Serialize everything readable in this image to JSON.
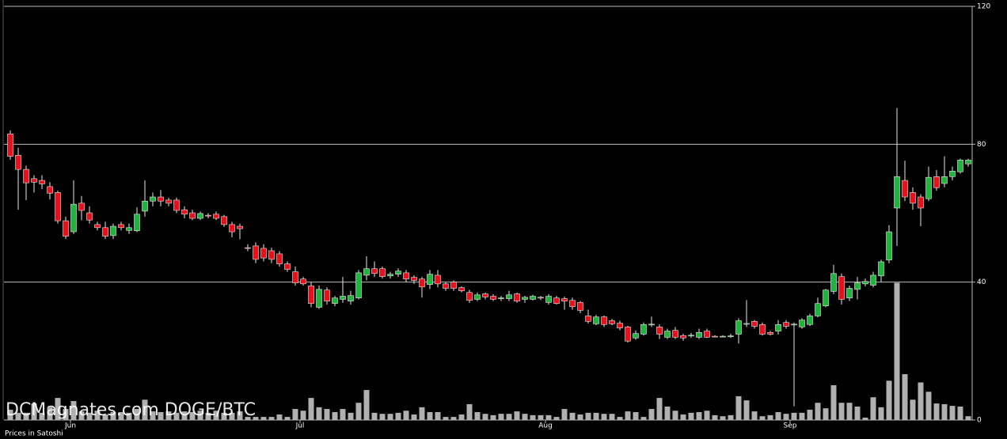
{
  "chart_data": {
    "type": "candlestick",
    "title": "DCMagnates.com DOGE/BTC",
    "ylabel": "Prices in Satoshi",
    "up_color": "#22b33c",
    "down_color": "#e3121b",
    "volume_color": "#b0b0b0",
    "grid": true,
    "ylim": [
      0,
      120
    ],
    "yticks": [
      0,
      40,
      80,
      120
    ],
    "xticks": [
      {
        "value": 7.6,
        "label": "Jun"
      },
      {
        "value": 36.6,
        "label": "Jul"
      },
      {
        "value": 67.6,
        "label": "Aug"
      },
      {
        "value": 98.5,
        "label": "Sep"
      }
    ],
    "open": [
      83,
      76.8,
      72.7,
      70,
      69.5,
      67.7,
      66,
      57.8,
      54.6,
      62.9,
      60.1,
      56.7,
      55.8,
      53.5,
      56.7,
      55,
      54.9,
      60.6,
      63.5,
      64.7,
      63.8,
      63.8,
      61,
      60.1,
      58.5,
      59.4,
      59.7,
      59,
      56.7,
      56.2,
      50,
      50.5,
      49.8,
      49.1,
      48.2,
      45.3,
      43,
      40.9,
      38.9,
      32.7,
      37.7,
      33.8,
      35,
      34.5,
      35.4,
      42,
      43.9,
      43.9,
      41.8,
      42.3,
      42.7,
      41.4,
      40.9,
      39.3,
      42,
      39.5,
      40,
      38.4,
      37,
      35,
      36.6,
      35.9,
      35.2,
      35.2,
      36.6,
      35,
      35,
      35.6,
      34.1,
      35.4,
      35.2,
      34.7,
      34.1,
      30.2,
      27.9,
      29.9,
      28.8,
      28.1,
      27,
      23.8,
      24.9,
      27.6,
      27,
      24,
      26,
      24.5,
      24.4,
      24,
      25.8,
      24.3,
      24.2,
      24.3,
      24.9,
      27.9,
      28.6,
      27.7,
      25.4,
      25.8,
      28.3,
      27.6,
      27,
      27.7,
      30.2,
      33.1,
      37.3,
      41.6,
      35.4,
      37.9,
      39.5,
      39.1,
      41.8,
      46.4,
      61.5,
      69.5,
      66,
      64.7,
      64.2,
      70.6,
      68.6,
      70.6,
      72,
      74.3
    ],
    "high": [
      84,
      79,
      73.8,
      71,
      71,
      69,
      66.5,
      59,
      69.5,
      65,
      62,
      57.5,
      57.5,
      57,
      57.5,
      57,
      61.7,
      69.5,
      66,
      66.7,
      64.5,
      64.5,
      62,
      61,
      60.5,
      60,
      60.5,
      59.5,
      57.5,
      57,
      51,
      51.5,
      51,
      50,
      49,
      46,
      44.5,
      41.5,
      40,
      39,
      38.5,
      36,
      41.5,
      37.5,
      43.5,
      47.5,
      46,
      44.5,
      43,
      44,
      43.5,
      42,
      41.5,
      43.5,
      43.5,
      40,
      40.5,
      38.8,
      37.8,
      37,
      37,
      36.5,
      36,
      37.5,
      37,
      36,
      36.3,
      36,
      36.5,
      36,
      35.8,
      35.5,
      34.5,
      32,
      30.5,
      30.3,
      29.3,
      28.8,
      27.3,
      26,
      28.3,
      30,
      27.8,
      26.5,
      27,
      25,
      25.3,
      26.5,
      26.5,
      24.6,
      24.6,
      25,
      29.5,
      34.8,
      29,
      28.3,
      25.8,
      29,
      29,
      28.3,
      29.5,
      30.8,
      35.5,
      38,
      45,
      42.5,
      39,
      41.5,
      41,
      43,
      46.5,
      56.5,
      90.5,
      75.2,
      67.5,
      65.5,
      73.5,
      72.5,
      76.5,
      73.5,
      75.8,
      75.8
    ],
    "low": [
      75.5,
      61,
      63.8,
      66,
      67,
      64,
      57,
      52.5,
      54,
      58,
      57,
      55,
      52.5,
      52.5,
      55,
      54,
      54.5,
      59,
      62,
      62,
      62,
      60,
      58.5,
      58,
      58,
      58.5,
      58,
      56,
      53,
      52.5,
      49,
      45.5,
      46,
      45.5,
      44.5,
      43,
      39,
      39,
      32.7,
      32.2,
      33.5,
      33,
      34,
      33.5,
      35,
      40.5,
      41.5,
      41,
      41,
      41.5,
      40,
      39.5,
      35.5,
      38,
      38.5,
      37.5,
      37.5,
      37,
      34,
      34.5,
      35,
      34.5,
      34.5,
      34.5,
      34,
      34,
      34.7,
      34.8,
      33.5,
      33.5,
      32,
      32,
      31,
      28,
      27.5,
      27,
      27.5,
      26,
      22.5,
      23.3,
      24.5,
      27,
      23.5,
      23.5,
      23.5,
      23,
      23.8,
      23.5,
      23.8,
      24,
      24,
      23.8,
      22.2,
      27,
      26.5,
      24.5,
      24.5,
      24.8,
      26.5,
      4,
      26.5,
      27.3,
      29.8,
      32.7,
      36.5,
      33.5,
      34.5,
      35,
      38.8,
      38.5,
      40,
      45.5,
      50.5,
      63.5,
      61,
      56.2,
      63.5,
      66.5,
      67.5,
      69.5,
      71.5,
      73.5
    ],
    "close": [
      76.5,
      72.7,
      68.8,
      69,
      68.5,
      65.8,
      57.8,
      53.3,
      62.6,
      60.8,
      58,
      55.8,
      53.3,
      56.2,
      55.8,
      55.8,
      59.7,
      63.5,
      64.7,
      63.5,
      62.9,
      60.8,
      59.7,
      58.5,
      59.9,
      59.2,
      58.5,
      56.7,
      54.6,
      55.5,
      49.8,
      46.6,
      47,
      46.6,
      45.3,
      43.7,
      39.8,
      39.5,
      33.8,
      37.9,
      34.5,
      35.4,
      35.9,
      36.1,
      42.7,
      43.9,
      42.5,
      41.6,
      42.3,
      43.2,
      40.9,
      40.5,
      38.6,
      42.3,
      39.5,
      38.2,
      38.2,
      37.5,
      34.7,
      36.3,
      35.7,
      35,
      35.4,
      36.3,
      34.5,
      35.6,
      35.9,
      35.4,
      35.9,
      33.8,
      34.5,
      32.9,
      31.8,
      28.6,
      29.9,
      27.7,
      27.9,
      26.7,
      22.9,
      25.1,
      27.7,
      27.8,
      24.9,
      25.8,
      24,
      23.8,
      24.6,
      25.4,
      24,
      24.2,
      24.3,
      24.4,
      28.8,
      28,
      27.2,
      24.9,
      24.9,
      27.7,
      27.2,
      27.8,
      29,
      30.2,
      33.8,
      37.7,
      42.5,
      35,
      38.2,
      39.8,
      40.2,
      42,
      45.9,
      54.6,
      70.6,
      64.7,
      62.9,
      61.5,
      70.4,
      67.4,
      70.6,
      72.2,
      75.4,
      75.4
    ],
    "volume": [
      3.0,
      2.1,
      2.1,
      4.8,
      2.1,
      3.7,
      6.4,
      3.2,
      5.5,
      2.5,
      2.1,
      2.7,
      1.6,
      2.3,
      2.3,
      2.1,
      3.2,
      5.9,
      2.5,
      2.3,
      2.5,
      2.1,
      2.5,
      2.3,
      2.7,
      2.1,
      2.7,
      2.1,
      2.1,
      2.5,
      0.9,
      0.9,
      0.9,
      0.9,
      1.6,
      0.9,
      3.2,
      2.7,
      6.4,
      3.7,
      3.2,
      2.3,
      3.2,
      2.1,
      5.0,
      8.7,
      2.1,
      1.8,
      1.8,
      2.1,
      2.7,
      1.6,
      3.7,
      2.3,
      2.3,
      0.9,
      0.9,
      1.6,
      4.6,
      2.3,
      1.8,
      1.4,
      1.8,
      1.8,
      2.5,
      1.8,
      1.4,
      1.4,
      1.4,
      0.9,
      3.2,
      2.1,
      1.6,
      2.1,
      2.1,
      1.8,
      1.8,
      0.9,
      2.5,
      2.3,
      0.9,
      3.2,
      6.4,
      3.9,
      2.7,
      1.6,
      2.1,
      2.3,
      2.7,
      1.4,
      1.1,
      1.4,
      6.9,
      5.7,
      2.5,
      1.1,
      1.4,
      2.3,
      1.8,
      2.1,
      2.1,
      3.0,
      5.0,
      3.4,
      10.1,
      5.0,
      5.0,
      3.9,
      0.7,
      6.6,
      3.7,
      11.4,
      39.8,
      13.3,
      5.9,
      10.9,
      8.2,
      4.8,
      4.6,
      4.1,
      3.9,
      1.1
    ]
  }
}
